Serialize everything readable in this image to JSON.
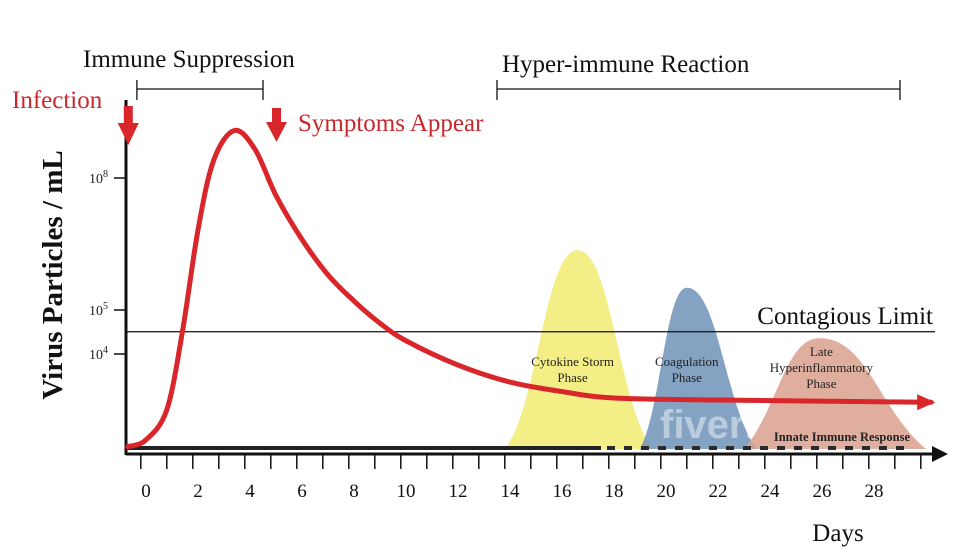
{
  "chart_data": {
    "type": "line",
    "title": "",
    "xlabel": "Days",
    "ylabel": "Virus Particles / mL",
    "y_scale": "log",
    "xlim": [
      -0.8,
      30.5
    ],
    "x_ticks": [
      0,
      2,
      4,
      6,
      8,
      10,
      12,
      14,
      16,
      18,
      20,
      22,
      24,
      26,
      28
    ],
    "x_minor_tick_step": 1,
    "y_ticks": [
      {
        "value": 100000000,
        "base": "10",
        "exp": "8"
      },
      {
        "value": 100000,
        "base": "10",
        "exp": "5"
      },
      {
        "value": 10000,
        "base": "10",
        "exp": "4"
      }
    ],
    "grid": false,
    "colors": {
      "virus": "#d9262a",
      "cytokine": "#f4ee86",
      "coagulation": "#6f93b8",
      "late": "#d9a08e",
      "axis": "#111111",
      "annotation_red": "#c8282c"
    },
    "series": [
      {
        "name": "",
        "color": "#d9262a",
        "arrow_end": true,
        "x": [
          -0.7,
          0,
          0.8,
          1.4,
          2,
          2.6,
          3.4,
          4.2,
          5,
          6,
          7,
          8,
          9,
          10,
          12,
          14,
          16,
          18,
          22,
          30.2
        ],
        "y": [
          78,
          112,
          540,
          32000,
          6600000,
          250000000,
          1200000000,
          440000000,
          40000000,
          4000000,
          630000,
          160000,
          50000,
          20000,
          5600,
          2300,
          1400,
          1000,
          900,
          800
        ]
      }
    ],
    "reference_lines": [
      {
        "label": "Contagious Limit",
        "value": 32000
      }
    ],
    "phases": [
      {
        "label_lines": [
          "Cytokine Storm",
          "Phase"
        ],
        "start": 13.8,
        "peak_day": 16.6,
        "end": 19.5,
        "peak_value": 2300000,
        "color": "#f4ee86"
      },
      {
        "label_lines": [
          "Coagulation",
          "Phase"
        ],
        "start": 19.0,
        "peak_day": 20.8,
        "end": 23.5,
        "peak_value": 320000,
        "color": "#6f93b8"
      },
      {
        "label_lines": [
          "Late",
          "Hyperinflammatory",
          "Phase"
        ],
        "start": 23.0,
        "peak_day": 25.9,
        "end": 30.0,
        "peak_value": 23000,
        "color": "#d9a08e"
      }
    ],
    "baseline_response": {
      "label": "Innate Immune Response",
      "solid_until": 17.5,
      "dashed_until": 29.5
    },
    "annotations": {
      "infection": {
        "label": "Infection",
        "day": -0.7
      },
      "symptoms": {
        "label": "Symptoms Appear",
        "day": 5
      },
      "immune_suppression": {
        "label": "Immune Suppression",
        "start": -0.35,
        "end": 4.5
      },
      "hyper_immune": {
        "label": "Hyper-immune Reaction",
        "start": 13.5,
        "end": 29
      }
    },
    "watermark": "fiverr"
  }
}
